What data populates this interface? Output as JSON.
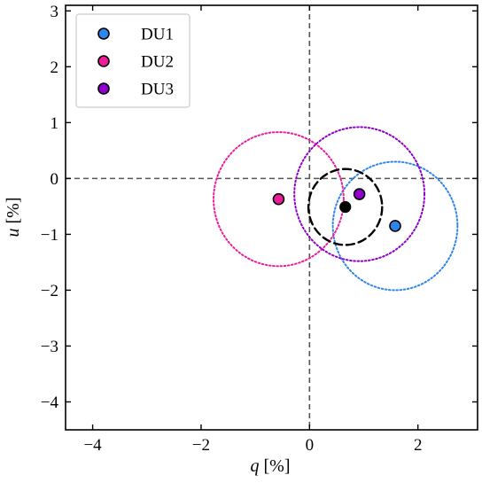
{
  "chart_data": {
    "type": "scatter",
    "title": "",
    "xlabel": {
      "var": "q",
      "unit": " [%]"
    },
    "ylabel": {
      "var": "u",
      "unit": " [%]"
    },
    "xlim": [
      -4.5,
      3.1
    ],
    "ylim": [
      -4.5,
      3.1
    ],
    "xticks": [
      -4,
      -2,
      0,
      2
    ],
    "yticks": [
      -4,
      -3,
      -2,
      -1,
      0,
      1,
      2,
      3
    ],
    "grid": false,
    "reference_lines": [
      {
        "axis": "x",
        "value": 0,
        "style": "dashed",
        "color": "#555555"
      },
      {
        "axis": "y",
        "value": 0,
        "style": "dashed",
        "color": "#555555"
      }
    ],
    "legend": {
      "position": "top-left",
      "entries": [
        "DU1",
        "DU2",
        "DU3"
      ]
    },
    "series": [
      {
        "name": "DU1",
        "color": "#2f86ea",
        "x": 1.58,
        "y": -0.85,
        "radius": 1.15,
        "circle_style": "dotted"
      },
      {
        "name": "DU2",
        "color": "#ee1c9a",
        "x": -0.57,
        "y": -0.37,
        "radius": 1.2,
        "circle_style": "dotted"
      },
      {
        "name": "DU3",
        "color": "#9000cc",
        "x": 0.92,
        "y": -0.28,
        "radius": 1.2,
        "circle_style": "dotted"
      }
    ],
    "combined": {
      "color": "#000000",
      "x": 0.66,
      "y": -0.51,
      "radius": 0.68,
      "circle_style": "dashed"
    }
  }
}
